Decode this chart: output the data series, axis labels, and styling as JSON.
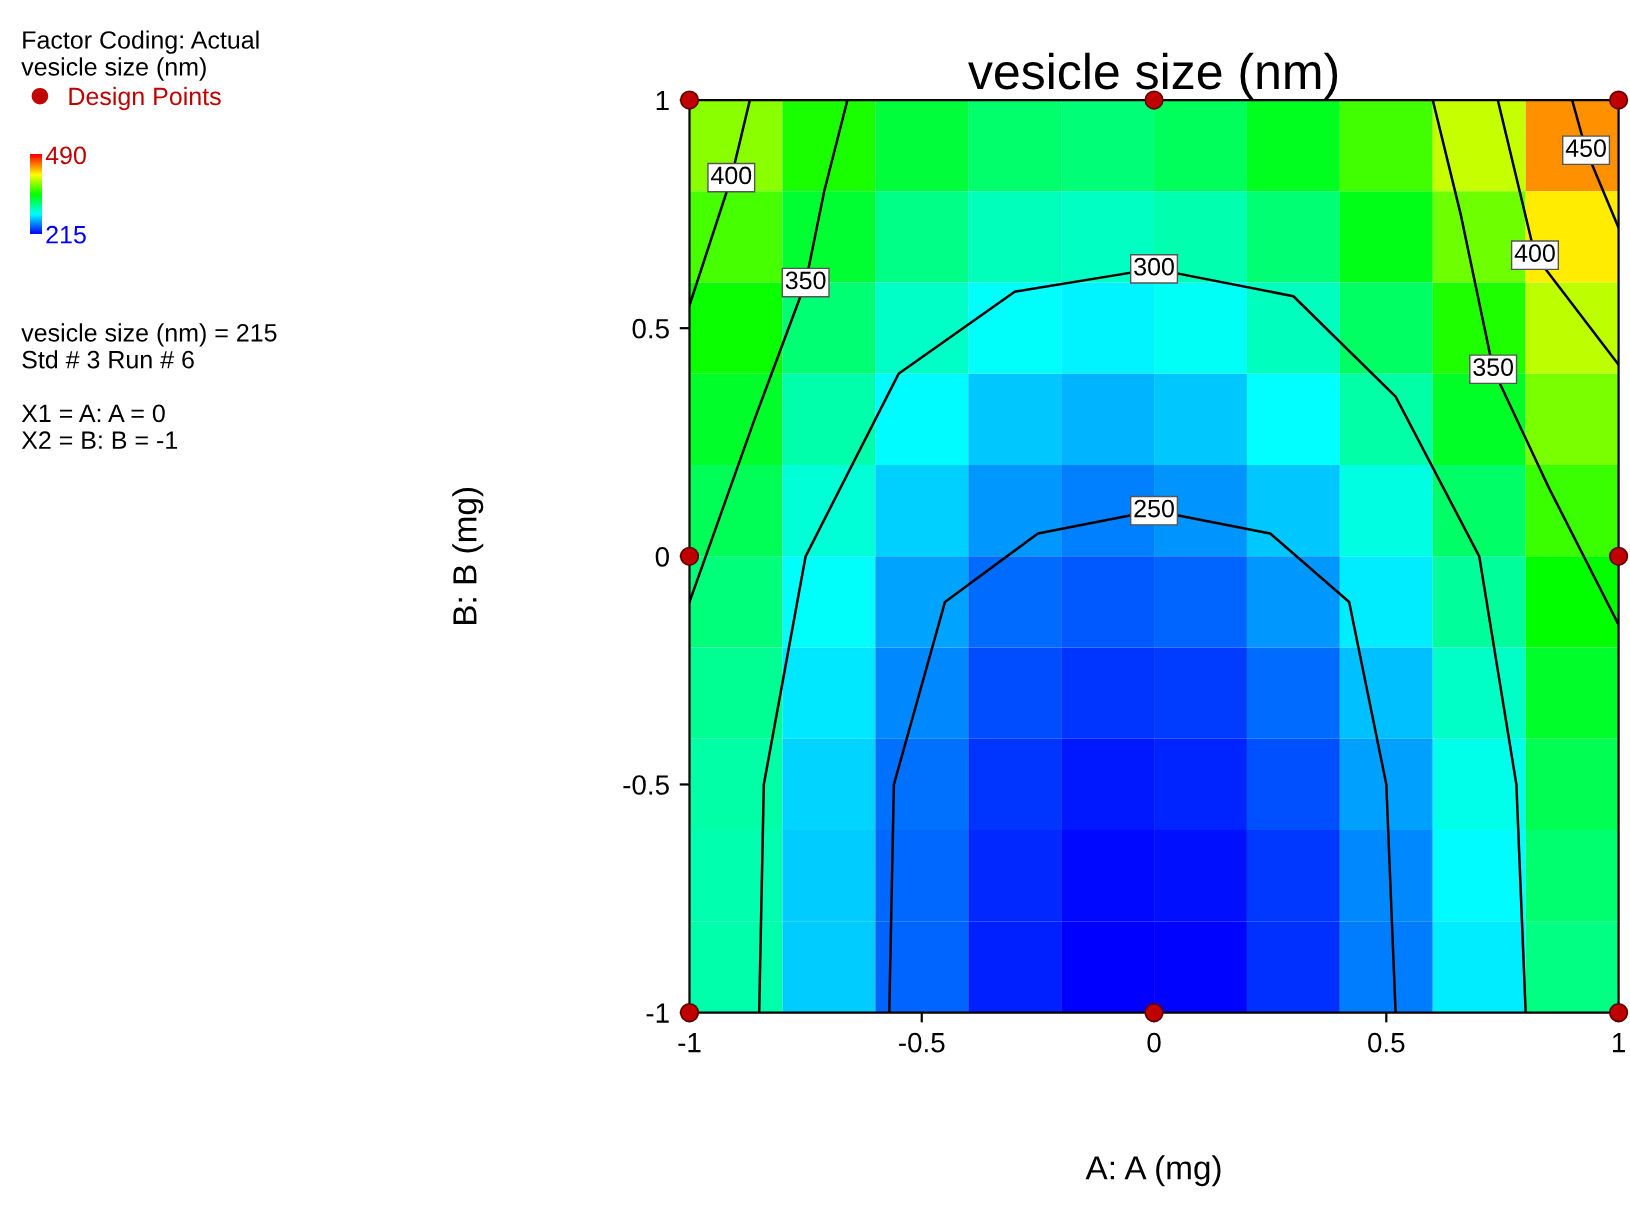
{
  "chart_data": {
    "type": "heatmap",
    "title": "vesicle size (nm)",
    "xlabel": "A: A (mg)",
    "ylabel": "B: B (mg)",
    "clabel": "vesicle size (nm)",
    "x": [
      -0.9,
      -0.7,
      -0.5,
      -0.3,
      -0.1,
      0.1,
      0.3,
      0.5,
      0.7,
      0.9
    ],
    "y": [
      0.9,
      0.7,
      0.5,
      0.3,
      0.1,
      -0.1,
      -0.3,
      -0.5,
      -0.7,
      -0.9
    ],
    "cells": [
      [
        390,
        359,
        337,
        324,
        321,
        328,
        344,
        370,
        406,
        451
      ],
      [
        371,
        339,
        316,
        303,
        300,
        306,
        322,
        347,
        382,
        426
      ],
      [
        355,
        322,
        299,
        285,
        281,
        286,
        302,
        326,
        361,
        404
      ],
      [
        341,
        307,
        283,
        269,
        264,
        269,
        284,
        308,
        342,
        385
      ],
      [
        329,
        295,
        271,
        256,
        250,
        255,
        269,
        292,
        325,
        368
      ],
      [
        320,
        285,
        260,
        245,
        239,
        242,
        256,
        279,
        311,
        353
      ],
      [
        313,
        278,
        252,
        236,
        229,
        232,
        245,
        267,
        299,
        341
      ],
      [
        308,
        273,
        246,
        230,
        222,
        225,
        237,
        259,
        290,
        331
      ],
      [
        306,
        270,
        243,
        226,
        218,
        220,
        231,
        252,
        283,
        323
      ],
      [
        307,
        270,
        242,
        224,
        216,
        217,
        228,
        249,
        279,
        318
      ]
    ],
    "clim": [
      215,
      490
    ],
    "cticks": [
      215,
      490
    ],
    "xlim": [
      -1,
      1
    ],
    "ylim": [
      -1,
      1
    ],
    "xticks": [
      -1,
      -0.5,
      0,
      0.5,
      1
    ],
    "yticks": [
      -1,
      -0.5,
      0,
      0.5,
      1
    ],
    "grid": false,
    "legend": "top left",
    "series": [
      {
        "type": "scatter",
        "name": "Design Points",
        "color": "#c00000",
        "marker": "circle",
        "x": [
          -1,
          0,
          1,
          -1,
          1,
          -1,
          0,
          1
        ],
        "values": [
          1,
          1,
          1,
          0,
          0,
          -1,
          -1,
          -1
        ]
      },
      {
        "type": "line",
        "name": "400",
        "color": "#000000",
        "x": [
          -0.87,
          -0.91,
          -1
        ],
        "values": [
          1,
          0.83,
          0.55
        ]
      },
      {
        "type": "line",
        "name": "350",
        "color": "#000000",
        "x": [
          -0.66,
          -0.71,
          -0.75,
          -0.86,
          -1
        ],
        "values": [
          1,
          0.8,
          0.6,
          0.3,
          -0.1
        ]
      },
      {
        "type": "line",
        "name": "300",
        "color": "#000000",
        "x": [
          -0.85,
          -0.84,
          -0.75,
          -0.55,
          -0.3,
          0,
          0.3,
          0.52,
          0.7,
          0.78,
          0.8
        ],
        "values": [
          -1,
          -0.5,
          0,
          0.4,
          0.58,
          0.63,
          0.57,
          0.35,
          0,
          -0.5,
          -1
        ]
      },
      {
        "type": "line",
        "name": "250",
        "color": "#000000",
        "x": [
          -0.57,
          -0.56,
          -0.45,
          -0.25,
          0,
          0.25,
          0.42,
          0.5,
          0.52
        ],
        "values": [
          -1,
          -0.5,
          -0.1,
          0.05,
          0.1,
          0.05,
          -0.1,
          -0.5,
          -1
        ]
      },
      {
        "type": "line",
        "name": "350",
        "color": "#000000",
        "x": [
          0.6,
          0.66,
          0.73,
          0.85,
          1
        ],
        "values": [
          1,
          0.75,
          0.41,
          0.15,
          -0.15
        ]
      },
      {
        "type": "line",
        "name": "400",
        "color": "#000000",
        "x": [
          0.74,
          0.82,
          1
        ],
        "values": [
          1,
          0.66,
          0.42
        ]
      },
      {
        "type": "line",
        "name": "450",
        "color": "#000000",
        "x": [
          0.9,
          0.93,
          1
        ],
        "values": [
          1,
          0.89,
          0.72
        ]
      }
    ],
    "annotations": [
      "Factor Coding: Actual",
      "vesicle size (nm) = 215",
      "Std # 3 Run # 6",
      "X1 = A: A = 0",
      "X2 = B: B = -1"
    ]
  }
}
